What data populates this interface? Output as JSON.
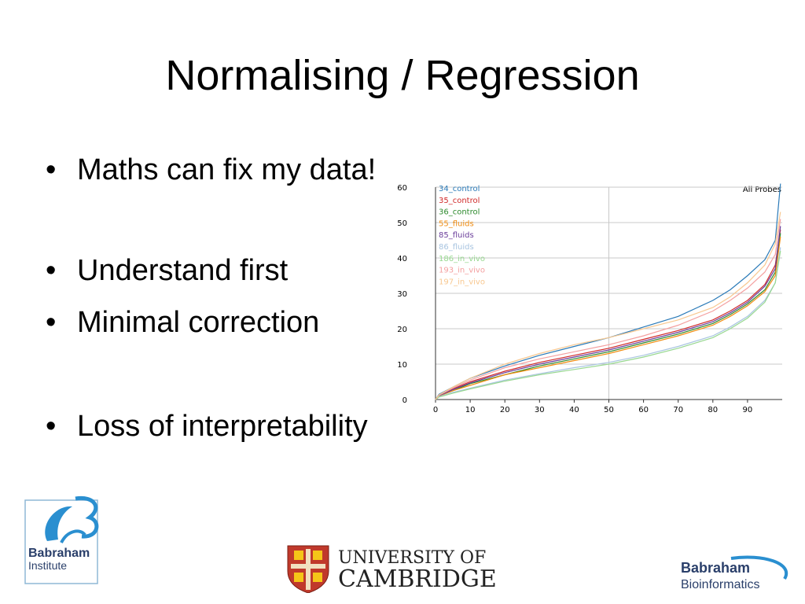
{
  "slide": {
    "title": "Normalising / Regression",
    "bullets": [
      "Maths can fix my data!",
      "Understand first",
      "Minimal correction",
      "Loss of interpretability"
    ]
  },
  "logos": {
    "babraham_institute": [
      "Babraham",
      "Institute"
    ],
    "cambridge": [
      "UNIVERSITY OF",
      "CAMBRIDGE"
    ],
    "babraham_bioinformatics": [
      "Babraham",
      "Bioinformatics"
    ]
  },
  "chart_data": {
    "type": "line",
    "title": "All Probes",
    "xlabel": "",
    "ylabel": "",
    "xlim": [
      0,
      100
    ],
    "ylim": [
      0,
      60
    ],
    "xticks": [
      0,
      10,
      20,
      30,
      40,
      50,
      60,
      70,
      80,
      90
    ],
    "yticks": [
      0,
      10,
      20,
      30,
      40,
      50,
      60
    ],
    "grid": true,
    "legend_position": "top-left",
    "series": [
      {
        "name": "34_control",
        "color": "#2a7ab8",
        "x": [
          0,
          1,
          5,
          10,
          20,
          30,
          40,
          50,
          60,
          70,
          80,
          85,
          90,
          95,
          98,
          99.5
        ],
        "y": [
          0,
          1.5,
          3.5,
          6,
          9.5,
          12.5,
          15,
          17.5,
          20.5,
          23.5,
          28,
          31,
          35,
          39.5,
          45,
          61
        ]
      },
      {
        "name": "35_control",
        "color": "#d02a2a",
        "x": [
          0,
          1,
          5,
          10,
          20,
          30,
          40,
          50,
          60,
          70,
          80,
          85,
          90,
          95,
          98,
          99.5
        ],
        "y": [
          0,
          1.2,
          3,
          5,
          8,
          10.5,
          12.5,
          14.5,
          17,
          19.5,
          22.5,
          25,
          28,
          32.5,
          38,
          48
        ]
      },
      {
        "name": "36_control",
        "color": "#2e8b2e",
        "x": [
          0,
          1,
          5,
          10,
          20,
          30,
          40,
          50,
          60,
          70,
          80,
          85,
          90,
          95,
          98,
          99.5
        ],
        "y": [
          0,
          1,
          2.5,
          4.5,
          7,
          9.5,
          11.5,
          13.5,
          16,
          18.5,
          21.5,
          24,
          27,
          31,
          36,
          47
        ]
      },
      {
        "name": "55_fluids",
        "color": "#f08c10",
        "x": [
          0,
          1,
          5,
          10,
          20,
          30,
          40,
          50,
          60,
          70,
          80,
          85,
          90,
          95,
          98,
          99.5
        ],
        "y": [
          0,
          1,
          2.5,
          4,
          7,
          9,
          11,
          13,
          15.5,
          18,
          21,
          23.5,
          26.5,
          30.5,
          35,
          46
        ]
      },
      {
        "name": "85_fluids",
        "color": "#6a3d9a",
        "x": [
          0,
          1,
          5,
          10,
          20,
          30,
          40,
          50,
          60,
          70,
          80,
          85,
          90,
          95,
          98,
          99.5
        ],
        "y": [
          0,
          1.1,
          2.8,
          4.7,
          7.6,
          10,
          12,
          14,
          16.5,
          19,
          22,
          24.5,
          27.5,
          32,
          37,
          49
        ]
      },
      {
        "name": "86_fluids",
        "color": "#a8c4e0",
        "x": [
          0,
          1,
          5,
          10,
          20,
          30,
          40,
          50,
          60,
          70,
          80,
          85,
          90,
          95,
          98,
          99.5
        ],
        "y": [
          0,
          0.8,
          2,
          3.2,
          5.5,
          7.3,
          9,
          10.5,
          12.5,
          15,
          18,
          20.5,
          23.5,
          28,
          33,
          43
        ]
      },
      {
        "name": "186_in_vivo",
        "color": "#98d890",
        "x": [
          0,
          1,
          5,
          10,
          20,
          30,
          40,
          50,
          60,
          70,
          80,
          85,
          90,
          95,
          98,
          99.5
        ],
        "y": [
          0,
          0.7,
          1.8,
          3,
          5.2,
          7,
          8.5,
          10,
          12,
          14.5,
          17.5,
          20,
          23,
          27.5,
          33,
          42
        ]
      },
      {
        "name": "193_in_vivo",
        "color": "#f4a0a0",
        "x": [
          0,
          1,
          5,
          10,
          20,
          30,
          40,
          50,
          60,
          70,
          80,
          85,
          90,
          95,
          98,
          99.5
        ],
        "y": [
          0,
          1.2,
          3.2,
          5.5,
          9,
          11.5,
          13.5,
          15.5,
          18,
          21,
          25,
          28,
          31.5,
          36,
          41,
          51
        ]
      },
      {
        "name": "197_in_vivo",
        "color": "#f8c890",
        "x": [
          0,
          1,
          5,
          10,
          20,
          30,
          40,
          50,
          60,
          70,
          80,
          85,
          90,
          95,
          98,
          99.5
        ],
        "y": [
          0,
          1.3,
          3.5,
          6,
          10,
          13,
          15.5,
          17.5,
          20,
          22.5,
          26,
          29,
          33,
          38,
          44,
          53
        ]
      }
    ]
  }
}
